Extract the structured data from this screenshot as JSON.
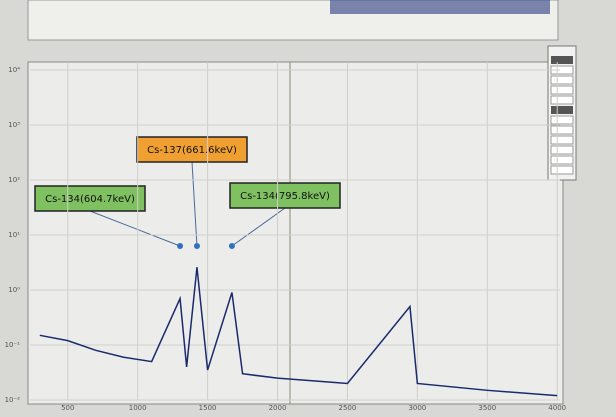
{
  "chart_data": {
    "type": "line",
    "log_y": true,
    "color": "#1a2a6e",
    "x": [
      300,
      500,
      700,
      900,
      1100,
      1303,
      1350,
      1424,
      1500,
      1674,
      1750,
      2000,
      2500,
      2947,
      3000,
      3500,
      4000
    ],
    "values": [
      0.15,
      0.12,
      0.08,
      0.06,
      0.05,
      0.7,
      0.04,
      2.6,
      0.035,
      0.9,
      0.03,
      0.025,
      0.02,
      0.5,
      0.02,
      0.015,
      0.012
    ],
    "xlim": [
      230,
      4020
    ],
    "xticks": [
      500,
      1000,
      1500,
      2000,
      2500,
      3000,
      3500,
      4000
    ],
    "ylim": [
      0.01,
      10000
    ],
    "yticks": [
      {
        "value": 0.01,
        "label": "10⁻²"
      },
      {
        "value": 0.1,
        "label": "10⁻¹"
      },
      {
        "value": 1,
        "label": "10⁰"
      },
      {
        "value": 10,
        "label": "10¹"
      },
      {
        "value": 100,
        "label": "10²"
      },
      {
        "value": 1000,
        "label": "10³"
      },
      {
        "value": 10000,
        "label": "10⁴"
      }
    ],
    "grid": true,
    "annotations": [
      {
        "text": "Cs-137(661.6keV)",
        "x": 1424
      },
      {
        "text": "Cs-134(604.7keV)",
        "x": 1303
      },
      {
        "text": "Cs-134(795.8keV)",
        "x": 1674
      }
    ]
  }
}
